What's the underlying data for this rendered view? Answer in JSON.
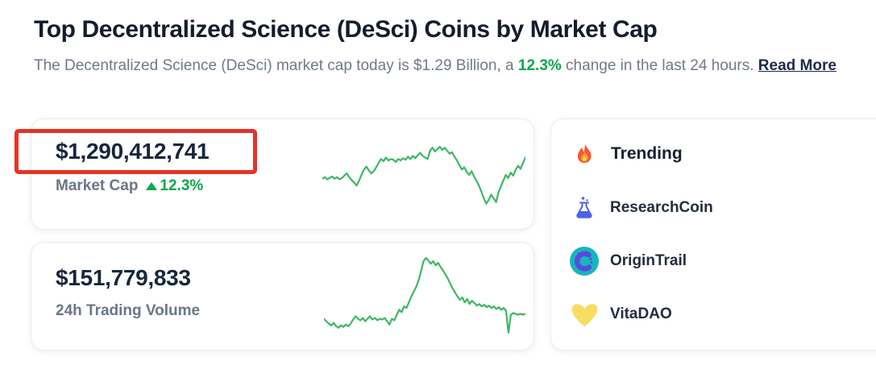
{
  "page": {
    "title": "Top Decentralized Science (DeSci) Coins by Market Cap",
    "subtitle_prefix": "The Decentralized Science (DeSci) market cap today is $1.29 Billion, a ",
    "subtitle_change": "12.3%",
    "subtitle_suffix": " change in the last 24 hours. ",
    "read_more_label": "Read More"
  },
  "stats": {
    "market_cap": {
      "value": "$1,290,412,741",
      "label": "Market Cap",
      "change": "12.3%",
      "change_direction": "up",
      "change_icon": "triangle-up-icon"
    },
    "volume": {
      "value": "$151,779,833",
      "label": "24h Trading Volume"
    }
  },
  "trending": {
    "title": "Trending",
    "title_icon": "flame-icon",
    "items": [
      {
        "name": "ResearchCoin",
        "icon": "flask-icon"
      },
      {
        "name": "OriginTrail",
        "icon": "origintrail-circle-logo"
      },
      {
        "name": "VitaDAO",
        "icon": "vitadao-heart-logo"
      }
    ]
  },
  "annotation": {
    "type": "red-highlight-box",
    "target": "market-cap-value"
  },
  "colors": {
    "accent_green": "#0ba750",
    "spark_green": "#3db764",
    "annotation_red": "#e53427",
    "text_dark": "#17263c",
    "text_gray": "#6e7a89",
    "flame_orange": "#f4632e",
    "flask_blue": "#4d63e4",
    "origintrail_teal": "#17b6bb",
    "origintrail_purple": "#584bdf",
    "vitadao_yellow": "#f7de63"
  },
  "chart_data": [
    {
      "type": "line",
      "name": "market-cap-sparkline",
      "color": "#3db764",
      "ylim": [
        0,
        100
      ],
      "grid": false,
      "values": [
        45,
        47,
        44,
        46,
        48,
        45,
        47,
        44,
        46,
        49,
        52,
        47,
        43,
        40,
        36,
        42,
        50,
        57,
        61,
        56,
        52,
        55,
        60,
        66,
        71,
        68,
        73,
        69,
        71,
        70,
        67,
        71,
        69,
        72,
        70,
        74,
        71,
        75,
        72,
        76,
        79,
        75,
        73,
        71,
        82,
        86,
        81,
        84,
        87,
        83,
        86,
        82,
        78,
        80,
        74,
        69,
        63,
        57,
        60,
        54,
        50,
        55,
        48,
        42,
        36,
        28,
        19,
        12,
        17,
        24,
        19,
        14,
        27,
        35,
        43,
        50,
        46,
        53,
        49,
        57,
        62,
        58,
        66,
        73
      ]
    },
    {
      "type": "line",
      "name": "volume-sparkline",
      "color": "#3db764",
      "ylim": [
        0,
        100
      ],
      "grid": false,
      "values": [
        25,
        22,
        19,
        17,
        20,
        16,
        14,
        17,
        15,
        18,
        16,
        19,
        24,
        28,
        25,
        23,
        26,
        22,
        25,
        28,
        24,
        26,
        23,
        25,
        24,
        26,
        22,
        18,
        25,
        23,
        30,
        36,
        33,
        40,
        38,
        45,
        52,
        58,
        64,
        72,
        83,
        95,
        99,
        96,
        92,
        95,
        90,
        93,
        88,
        84,
        79,
        74,
        68,
        62,
        57,
        52,
        48,
        51,
        45,
        49,
        43,
        47,
        44,
        41,
        43,
        40,
        42,
        39,
        41,
        38,
        40,
        37,
        39,
        36,
        38,
        35,
        8,
        30,
        32,
        31,
        30,
        31,
        30,
        31
      ]
    }
  ]
}
